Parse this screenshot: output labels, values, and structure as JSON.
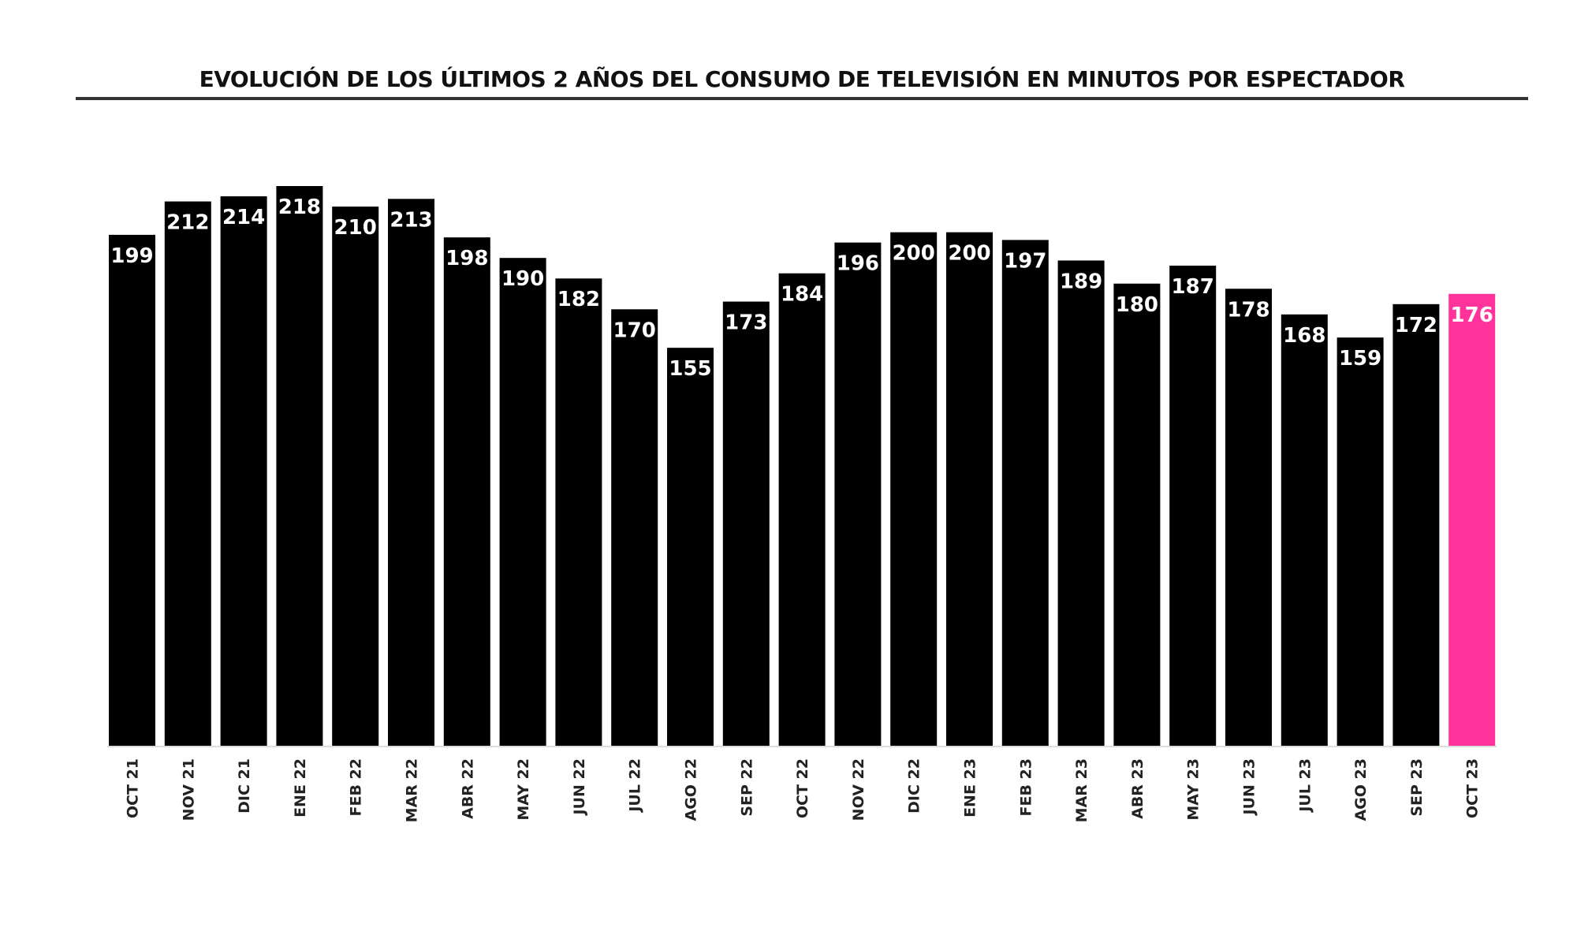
{
  "chart_data": {
    "type": "bar",
    "title": "EVOLUCIÓN DE LOS ÚLTIMOS 2 AÑOS DEL CONSUMO DE TELEVISIÓN EN MINUTOS POR ESPECTADOR",
    "categories": [
      "OCT 21",
      "NOV 21",
      "DIC 21",
      "ENE 22",
      "FEB 22",
      "MAR 22",
      "ABR 22",
      "MAY 22",
      "JUN 22",
      "JUL 22",
      "AGO 22",
      "SEP 22",
      "OCT 22",
      "NOV 22",
      "DIC 22",
      "ENE 23",
      "FEB 23",
      "MAR 23",
      "ABR 23",
      "MAY 23",
      "JUN 23",
      "JUL 23",
      "AGO 23",
      "SEP 23",
      "OCT 23"
    ],
    "values": [
      199,
      212,
      214,
      218,
      210,
      213,
      198,
      190,
      182,
      170,
      155,
      173,
      184,
      196,
      200,
      200,
      197,
      189,
      180,
      187,
      178,
      168,
      159,
      172,
      176
    ],
    "xlabel": "",
    "ylabel": "",
    "ylim": [
      0,
      218
    ],
    "grid": false,
    "legend": "none",
    "colors": {
      "bar": "#000000",
      "highlight": "#ff3399",
      "label": "#ffffff"
    },
    "highlight_index": 24
  }
}
